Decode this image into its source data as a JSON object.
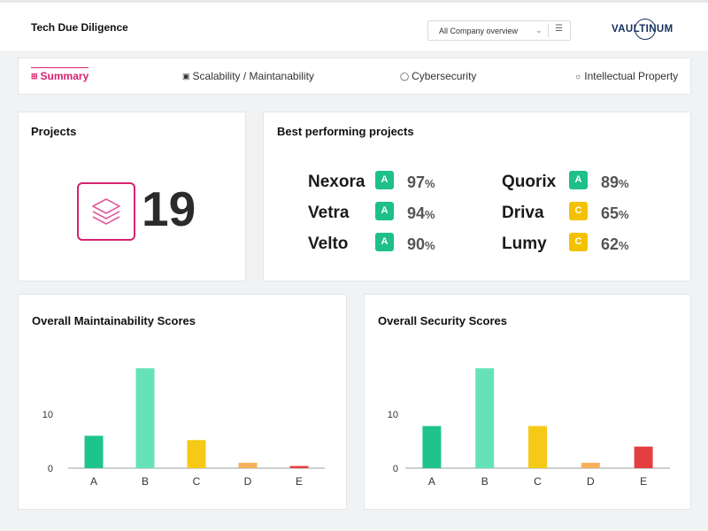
{
  "header": {
    "title": "Tech Due Diligence",
    "company_select": "All Company overview",
    "logo_text": "VAULTINUM"
  },
  "tabs": [
    {
      "label": "Summary",
      "icon": "summary-grid-icon",
      "active": true
    },
    {
      "label": "Scalability / Maintanability",
      "icon": "code-window-icon",
      "active": false
    },
    {
      "label": "Cybersecurity",
      "icon": "shield-icon",
      "active": false
    },
    {
      "label": "Intellectual Property",
      "icon": "lightbulb-icon",
      "active": false
    }
  ],
  "projects": {
    "title": "Projects",
    "count": "19",
    "icon": "layers-icon"
  },
  "best_performing": {
    "title": "Best performing projects",
    "unit": "%",
    "colors": {
      "A": "#1fbf8a",
      "C": "#f2c200"
    },
    "items": [
      {
        "name": "Nexora",
        "grade": "A",
        "score": "97"
      },
      {
        "name": "Vetra",
        "grade": "A",
        "score": "94"
      },
      {
        "name": "Velto",
        "grade": "A",
        "score": "90"
      },
      {
        "name": "Quorix",
        "grade": "A",
        "score": "89"
      },
      {
        "name": "Driva",
        "grade": "C",
        "score": "65"
      },
      {
        "name": "Lumy",
        "grade": "C",
        "score": "62"
      }
    ]
  },
  "chart_data": [
    {
      "type": "bar",
      "title": "Overall Maintainability Scores",
      "categories": [
        "A",
        "B",
        "C",
        "D",
        "E"
      ],
      "values": [
        6,
        18.5,
        5.2,
        1,
        0.4
      ],
      "colors": [
        "#1fc48c",
        "#66e2b8",
        "#f5c916",
        "#f6b05a",
        "#e53e3e"
      ],
      "yticks": [
        0,
        10
      ],
      "ylim": [
        0,
        20
      ],
      "xlabel": "",
      "ylabel": "",
      "grid": false
    },
    {
      "type": "bar",
      "title": "Overall Security Scores",
      "categories": [
        "A",
        "B",
        "C",
        "D",
        "E"
      ],
      "values": [
        7.8,
        18.5,
        7.8,
        1,
        4
      ],
      "colors": [
        "#1fc48c",
        "#66e2b8",
        "#f5c916",
        "#f6b05a",
        "#e53e3e"
      ],
      "yticks": [
        0,
        10
      ],
      "ylim": [
        0,
        20
      ],
      "xlabel": "",
      "ylabel": "",
      "grid": false
    }
  ]
}
